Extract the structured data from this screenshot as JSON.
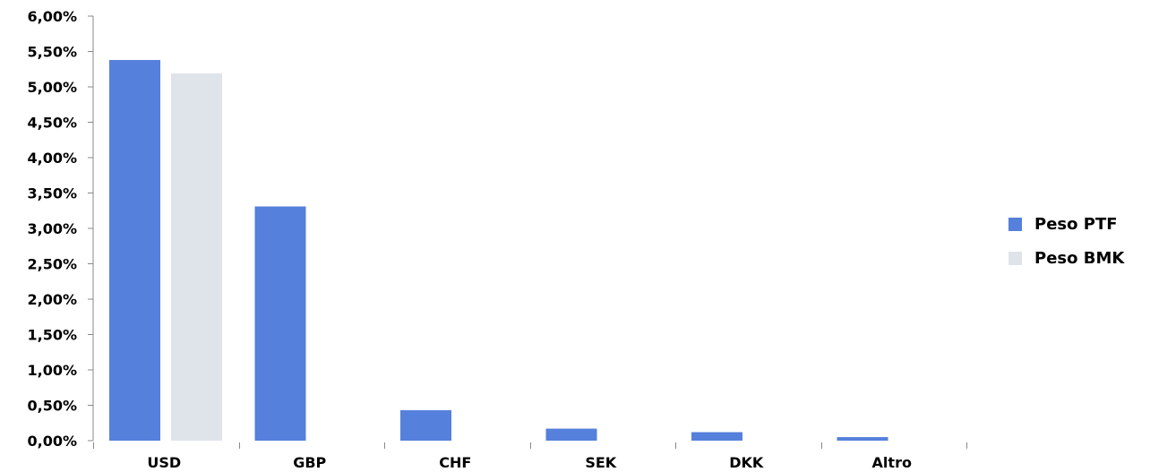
{
  "chart_data": {
    "type": "bar",
    "categories": [
      "USD",
      "GBP",
      "CHF",
      "SEK",
      "DKK",
      "Altro"
    ],
    "series": [
      {
        "name": "Peso PTF",
        "color": "#5580db",
        "values": [
          5.38,
          3.31,
          0.43,
          0.17,
          0.12,
          0.05
        ]
      },
      {
        "name": "Peso BMK",
        "color": "#dfe3ea",
        "values": [
          5.19,
          0,
          0,
          0,
          0,
          0
        ]
      }
    ],
    "ylim": [
      0,
      6
    ],
    "yticks": [
      "0,00%",
      "0,50%",
      "1,00%",
      "1,50%",
      "2,00%",
      "2,50%",
      "3,00%",
      "3,50%",
      "4,00%",
      "4,50%",
      "5,00%",
      "5,50%",
      "6,00%"
    ],
    "grid": false,
    "legend_position": "right"
  }
}
